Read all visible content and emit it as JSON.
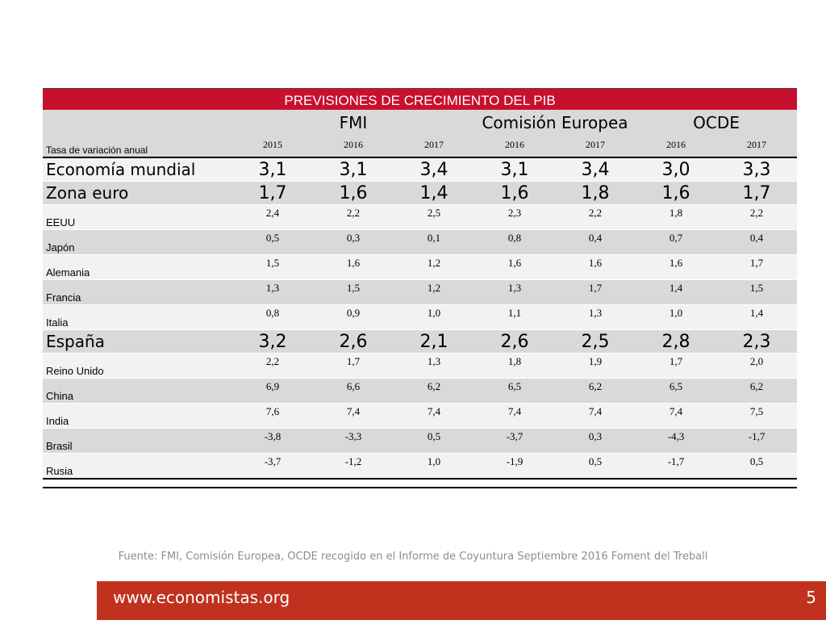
{
  "table": {
    "title": "PREVISIONES DE CRECIMIENTO DEL PIB",
    "row_header_label": "Tasa de variación anual",
    "groups": [
      {
        "name": "FMI",
        "years": [
          "2015",
          "2016",
          "2017"
        ]
      },
      {
        "name": "Comisión Europea",
        "years": [
          "2016",
          "2017"
        ]
      },
      {
        "name": "OCDE",
        "years": [
          "2016",
          "2017"
        ]
      }
    ],
    "rows": [
      {
        "label": "Economía mundial",
        "major": true,
        "values": [
          "3,1",
          "3,1",
          "3,4",
          "3,1",
          "3,4",
          "3,0",
          "3,3"
        ]
      },
      {
        "label": "Zona euro",
        "major": true,
        "values": [
          "1,7",
          "1,6",
          "1,4",
          "1,6",
          "1,8",
          "1,6",
          "1,7"
        ]
      },
      {
        "label": "EEUU",
        "major": false,
        "values": [
          "2,4",
          "2,2",
          "2,5",
          "2,3",
          "2,2",
          "1,8",
          "2,2"
        ]
      },
      {
        "label": "Japón",
        "major": false,
        "values": [
          "0,5",
          "0,3",
          "0,1",
          "0,8",
          "0,4",
          "0,7",
          "0,4"
        ]
      },
      {
        "label": "Alemania",
        "major": false,
        "values": [
          "1,5",
          "1,6",
          "1,2",
          "1,6",
          "1,6",
          "1,6",
          "1,7"
        ]
      },
      {
        "label": "Francia",
        "major": false,
        "values": [
          "1,3",
          "1,5",
          "1,2",
          "1,3",
          "1,7",
          "1,4",
          "1,5"
        ]
      },
      {
        "label": "Italia",
        "major": false,
        "values": [
          "0,8",
          "0,9",
          "1,0",
          "1,1",
          "1,3",
          "1,0",
          "1,4"
        ]
      },
      {
        "label": "España",
        "major": true,
        "values": [
          "3,2",
          "2,6",
          "2,1",
          "2,6",
          "2,5",
          "2,8",
          "2,3"
        ]
      },
      {
        "label": "Reino Unido",
        "major": false,
        "values": [
          "2,2",
          "1,7",
          "1,3",
          "1,8",
          "1,9",
          "1,7",
          "2,0"
        ]
      },
      {
        "label": "China",
        "major": false,
        "values": [
          "6,9",
          "6,6",
          "6,2",
          "6,5",
          "6,2",
          "6,5",
          "6,2"
        ]
      },
      {
        "label": "India",
        "major": false,
        "values": [
          "7,6",
          "7,4",
          "7,4",
          "7,4",
          "7,4",
          "7,4",
          "7,5"
        ]
      },
      {
        "label": "Brasil",
        "major": false,
        "values": [
          "-3,8",
          "-3,3",
          "0,5",
          "-3,7",
          "0,3",
          "-4,3",
          "-1,7"
        ]
      },
      {
        "label": "Rusia",
        "major": false,
        "values": [
          "-3,7",
          "-1,2",
          "1,0",
          "-1,9",
          "0,5",
          "-1,7",
          "0,5"
        ]
      }
    ]
  },
  "source": "Fuente: FMI, Comisión Europea, OCDE recogido en el Informe de Coyuntura Septiembre 2016 Foment del Treball",
  "footer": {
    "url": "www.economistas.org",
    "page_number": "5"
  },
  "colors": {
    "title_bar": "#c8102e",
    "footer_bar": "#c0321e",
    "row_light": "#f2f2f2",
    "row_dark": "#d9d9d9",
    "source_text": "#8c8c8c"
  }
}
